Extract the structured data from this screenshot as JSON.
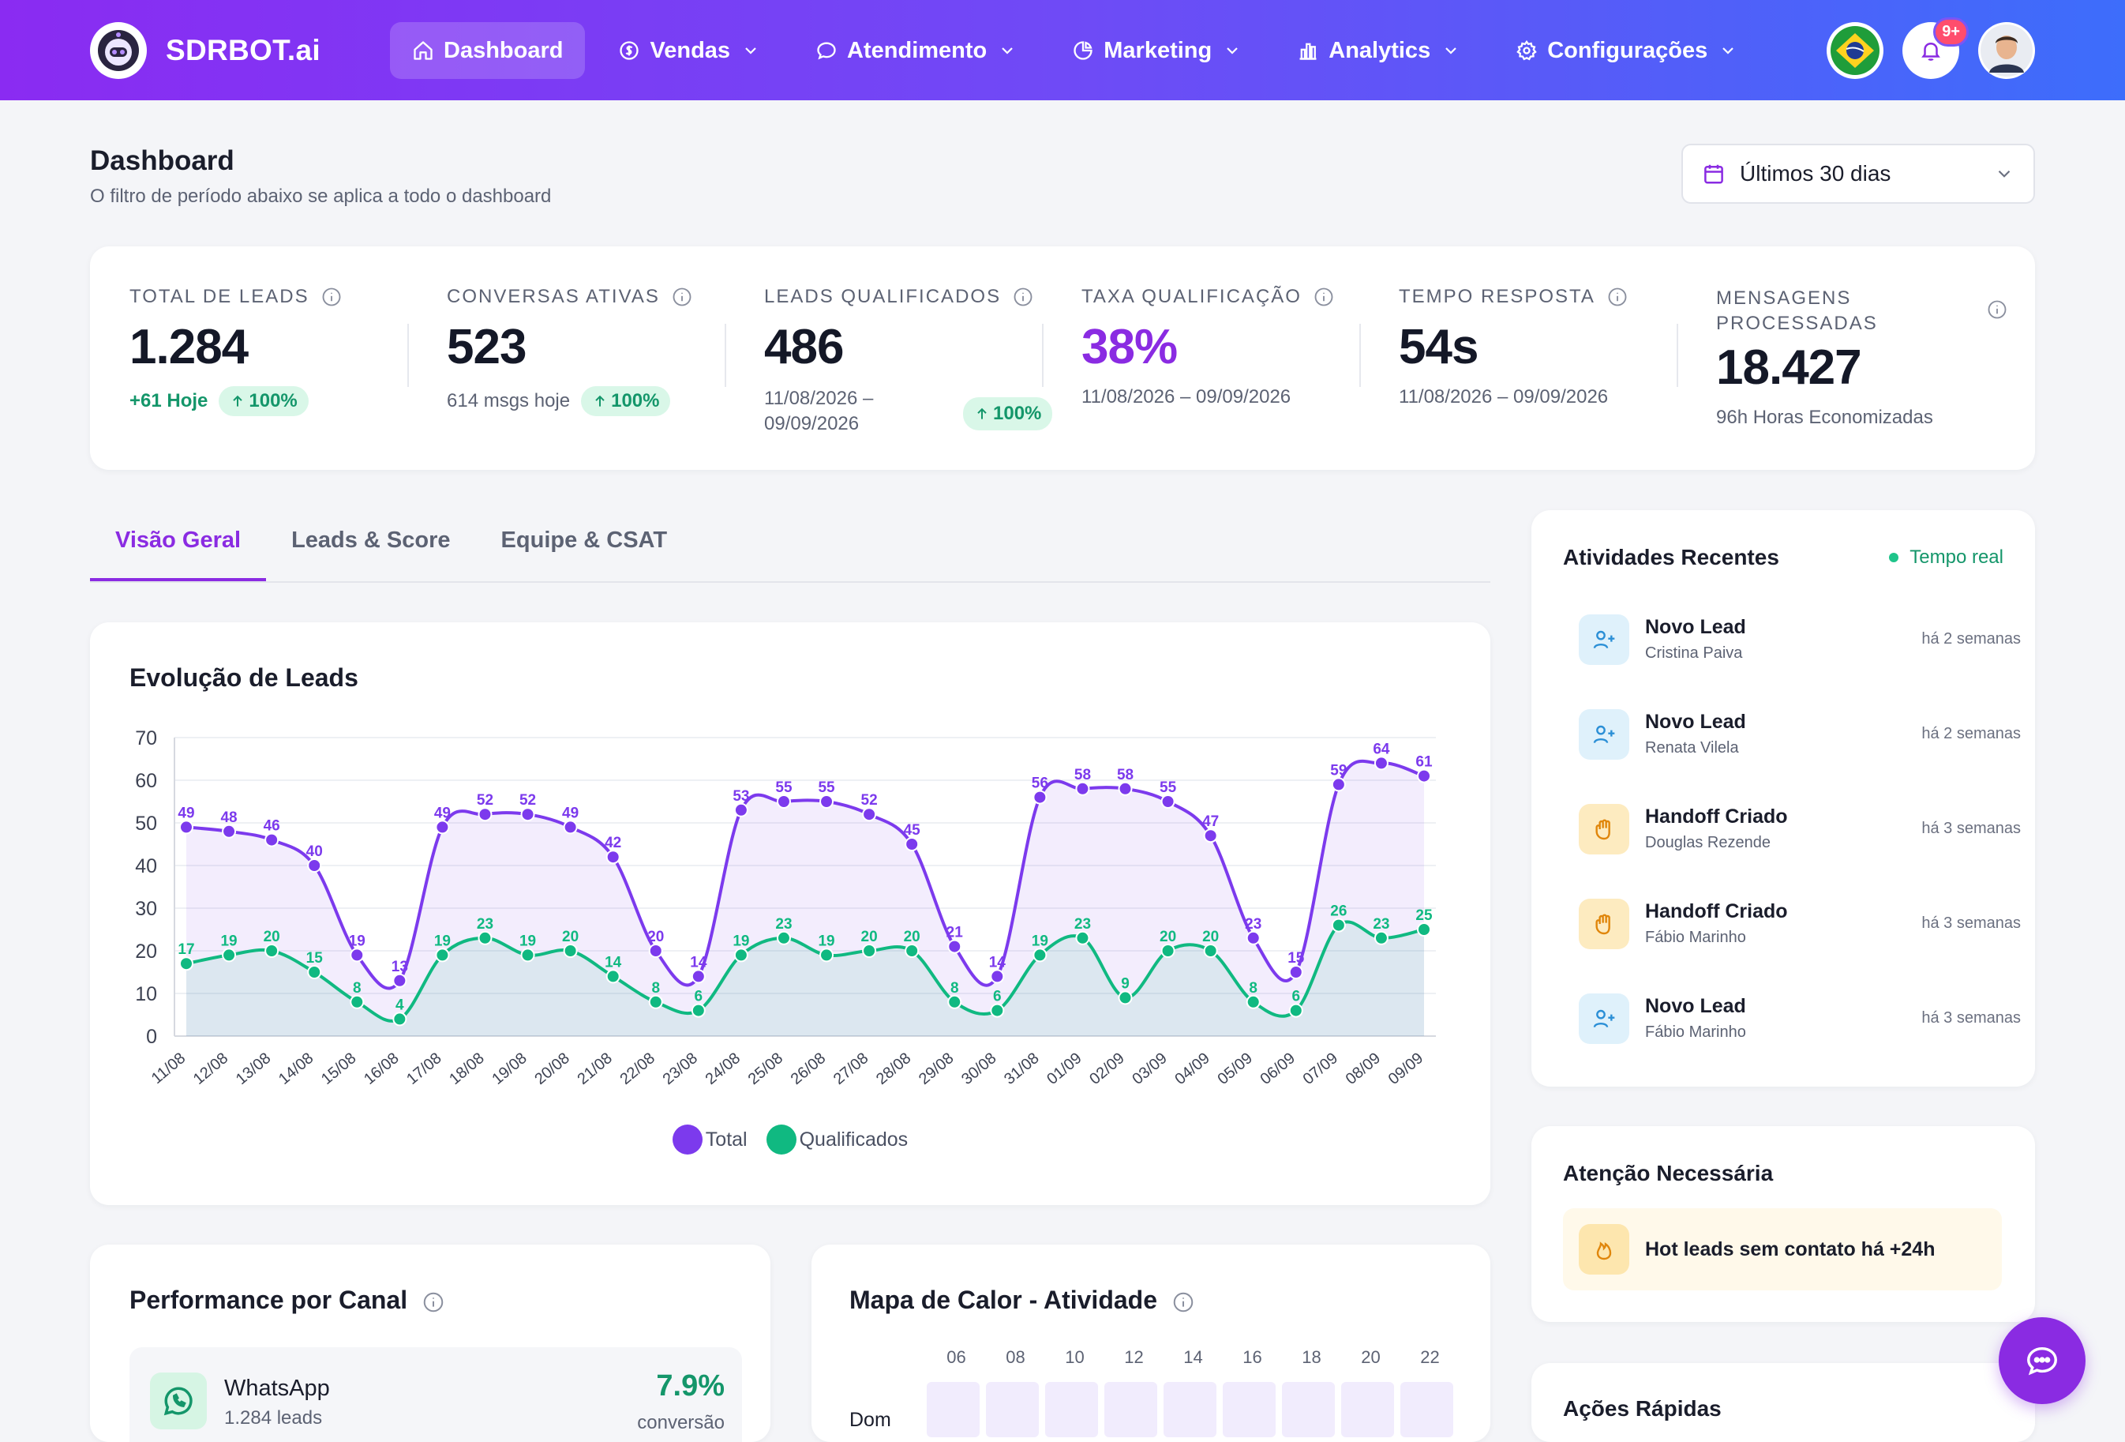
{
  "app": {
    "brand": "SDRBOT.ai"
  },
  "nav": {
    "items": [
      {
        "label": "Dashboard",
        "icon": "home-icon",
        "active": true
      },
      {
        "label": "Vendas",
        "icon": "dollar-icon"
      },
      {
        "label": "Atendimento",
        "icon": "chat-icon"
      },
      {
        "label": "Marketing",
        "icon": "pie-icon"
      },
      {
        "label": "Analytics",
        "icon": "bar-chart-icon"
      },
      {
        "label": "Configurações",
        "icon": "gear-icon"
      }
    ],
    "notification_count": "9+"
  },
  "page": {
    "title": "Dashboard",
    "subtitle": "O filtro de período abaixo se aplica a todo o dashboard",
    "period_selected": "Últimos 30 dias"
  },
  "kpis": {
    "total_leads": {
      "label": "TOTAL DE LEADS",
      "value": "1.284",
      "today": "+61 Hoje",
      "change": "100%"
    },
    "conversas": {
      "label": "CONVERSAS ATIVAS",
      "value": "523",
      "sub": "614 msgs hoje",
      "change": "100%"
    },
    "qualificados": {
      "label": "LEADS QUALIFICADOS",
      "value": "486",
      "range_line1": "11/08/2026 –",
      "range_line2": "09/09/2026",
      "change": "100%"
    },
    "taxa": {
      "label": "TAXA QUALIFICAÇÃO",
      "value": "38%",
      "range": "11/08/2026 – 09/09/2026"
    },
    "tempo": {
      "label": "TEMPO RESPOSTA",
      "value": "54s",
      "range": "11/08/2026 – 09/09/2026"
    },
    "mensagens": {
      "label_line1": "MENSAGENS",
      "label_line2": "PROCESSADAS",
      "value": "18.427",
      "sub": "96h Horas Economizadas"
    }
  },
  "tabs": [
    {
      "label": "Visão Geral",
      "active": true
    },
    {
      "label": "Leads & Score"
    },
    {
      "label": "Equipe & CSAT"
    }
  ],
  "chart_data": {
    "type": "line",
    "title": "Evolução de Leads",
    "ylim": [
      0,
      70
    ],
    "yticks": [
      0,
      10,
      20,
      30,
      40,
      50,
      60,
      70
    ],
    "grid": true,
    "legend_placement": "bottom",
    "x": [
      "11/08",
      "12/08",
      "13/08",
      "14/08",
      "15/08",
      "16/08",
      "17/08",
      "18/08",
      "19/08",
      "20/08",
      "21/08",
      "22/08",
      "23/08",
      "24/08",
      "25/08",
      "26/08",
      "27/08",
      "28/08",
      "29/08",
      "30/08",
      "31/08",
      "01/09",
      "02/09",
      "03/09",
      "04/09",
      "05/09",
      "06/09",
      "07/09",
      "08/09",
      "09/09"
    ],
    "series": [
      {
        "name": "Total",
        "color": "#7c3aed",
        "values": [
          49,
          48,
          46,
          40,
          19,
          13,
          49,
          52,
          52,
          49,
          42,
          20,
          14,
          53,
          55,
          55,
          52,
          45,
          21,
          14,
          56,
          58,
          58,
          55,
          47,
          23,
          15,
          59,
          64,
          61
        ]
      },
      {
        "name": "Qualificados",
        "color": "#10b981",
        "values": [
          17,
          19,
          20,
          15,
          8,
          4,
          19,
          23,
          19,
          20,
          14,
          8,
          6,
          19,
          23,
          19,
          20,
          20,
          8,
          6,
          19,
          23,
          9,
          20,
          20,
          8,
          6,
          26,
          23,
          25
        ]
      }
    ]
  },
  "channel": {
    "title": "Performance por Canal",
    "items": [
      {
        "name": "WhatsApp",
        "sub": "1.284 leads",
        "rate": "7.9%",
        "rate_label": "conversão"
      }
    ]
  },
  "heatmap": {
    "title": "Mapa de Calor - Atividade",
    "hours": [
      "06",
      "08",
      "10",
      "12",
      "14",
      "16",
      "18",
      "20",
      "22"
    ],
    "days": [
      "Dom"
    ]
  },
  "activities": {
    "title": "Atividades Recentes",
    "realtime_label": "Tempo real",
    "items": [
      {
        "title": "Novo Lead",
        "sub": "Cristina Paiva",
        "time": "há 2 semanas",
        "kind": "lead"
      },
      {
        "title": "Novo Lead",
        "sub": "Renata Vilela",
        "time": "há 2 semanas",
        "kind": "lead"
      },
      {
        "title": "Handoff Criado",
        "sub": "Douglas Rezende",
        "time": "há 3 semanas",
        "kind": "handoff"
      },
      {
        "title": "Handoff Criado",
        "sub": "Fábio Marinho",
        "time": "há 3 semanas",
        "kind": "handoff"
      },
      {
        "title": "Novo Lead",
        "sub": "Fábio Marinho",
        "time": "há 3 semanas",
        "kind": "lead"
      }
    ]
  },
  "attention": {
    "title": "Atenção Necessária",
    "alert": "Hot leads sem contato há +24h"
  },
  "quick_actions": {
    "title": "Ações Rápidas"
  }
}
